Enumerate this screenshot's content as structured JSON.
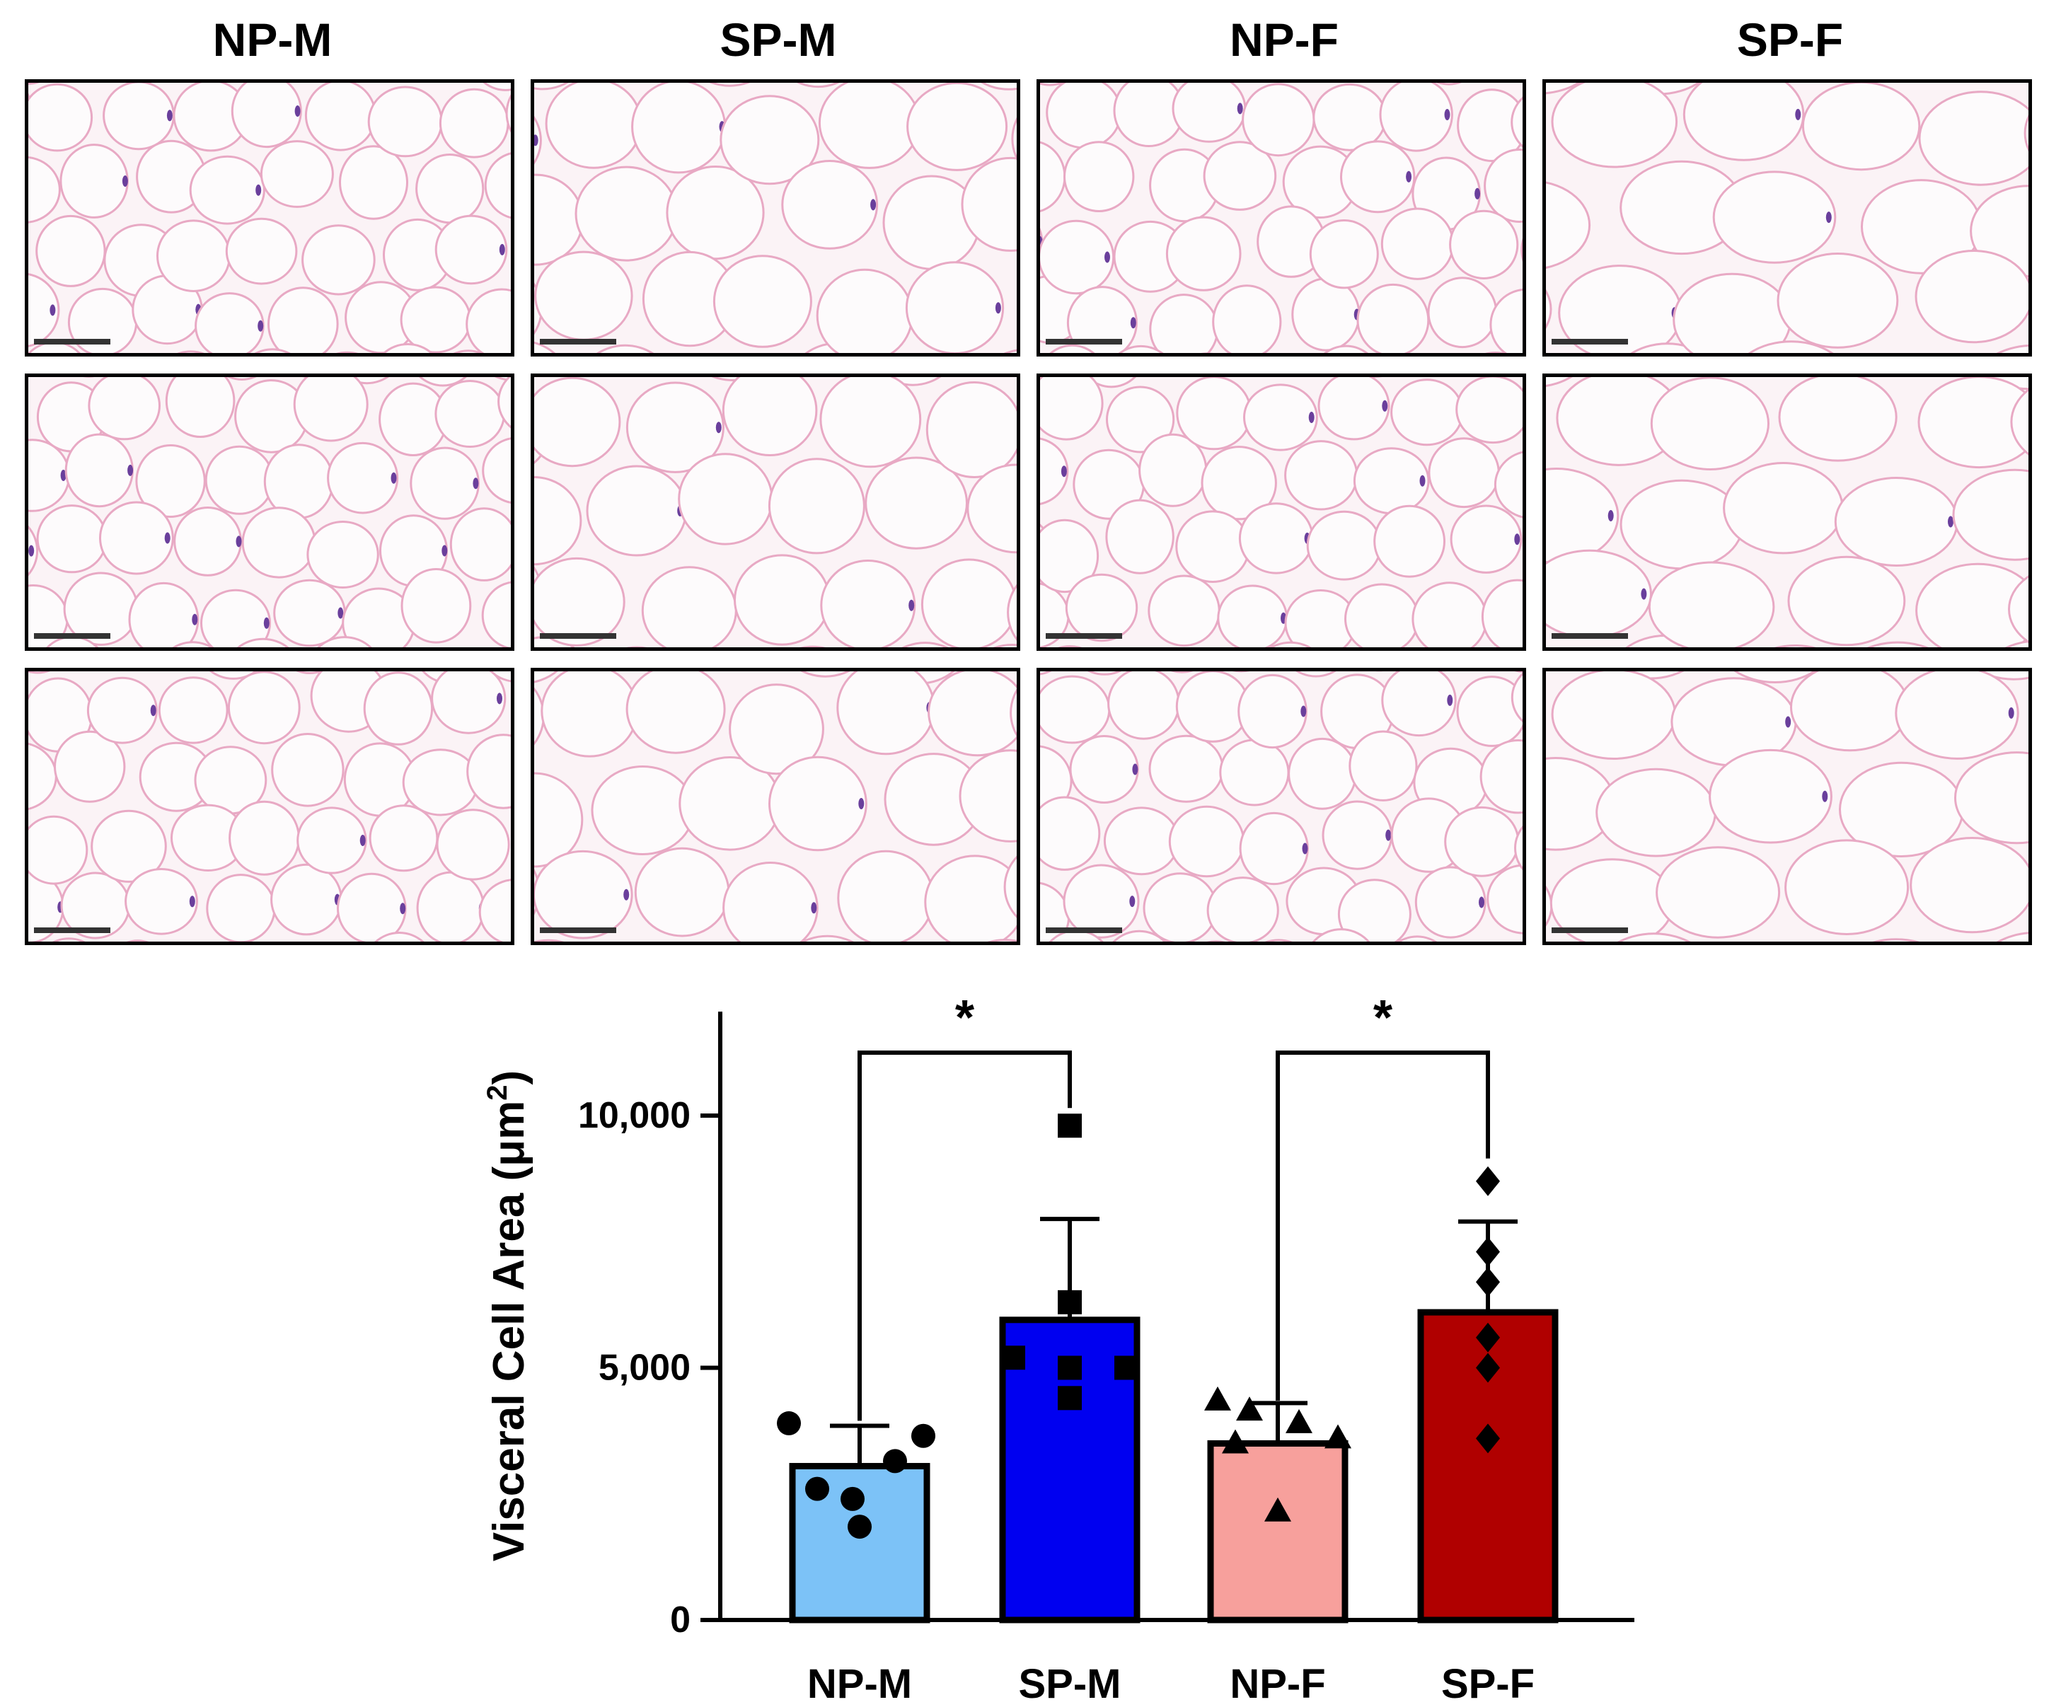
{
  "figure": {
    "column_headers": [
      "NP-M",
      "SP-M",
      "NP-F",
      "SP-F"
    ],
    "micrograph_rows": 3,
    "micrograph_description_color": "#f5c6d8"
  },
  "colors": {
    "NP-M": "#7cc2f7",
    "SP-M": "#0000f0",
    "NP-F": "#f7a09c",
    "SP-F": "#b00000",
    "membrane": "#e8a9c4",
    "nucleus": "#6a3f9c",
    "axis": "#000000"
  },
  "chart_data": {
    "type": "bar",
    "categories": [
      "NP-M",
      "SP-M",
      "NP-F",
      "SP-F"
    ],
    "ylabel": "Visceral Cell Area (μm²)",
    "ylabel_main": "Visceral Cell Area (μm",
    "ylabel_sup": "2",
    "ylabel_tail": ")",
    "ylim": [
      0,
      12000
    ],
    "yticks": [
      0,
      5000,
      10000
    ],
    "ytick_labels": [
      "0",
      "5,000",
      "10,000"
    ],
    "series": [
      {
        "name": "NP-M",
        "mean": 3050,
        "error": 800,
        "marker": "circle",
        "points": [
          3900,
          3650,
          2400,
          3150,
          2600,
          1850
        ]
      },
      {
        "name": "SP-M",
        "mean": 5950,
        "error": 2000,
        "marker": "square",
        "points": [
          9800,
          6300,
          5200,
          5000,
          5000,
          4400
        ]
      },
      {
        "name": "NP-F",
        "mean": 3500,
        "error": 800,
        "marker": "triangle",
        "points": [
          4350,
          4150,
          3900,
          3600,
          3500,
          2150
        ]
      },
      {
        "name": "SP-F",
        "mean": 6100,
        "error": 1800,
        "marker": "diamond",
        "points": [
          8700,
          7300,
          6700,
          5600,
          5000,
          3600
        ]
      }
    ],
    "significance": [
      {
        "from": "NP-M",
        "to": "SP-M",
        "label": "*"
      },
      {
        "from": "NP-F",
        "to": "SP-F",
        "label": "*"
      }
    ]
  }
}
